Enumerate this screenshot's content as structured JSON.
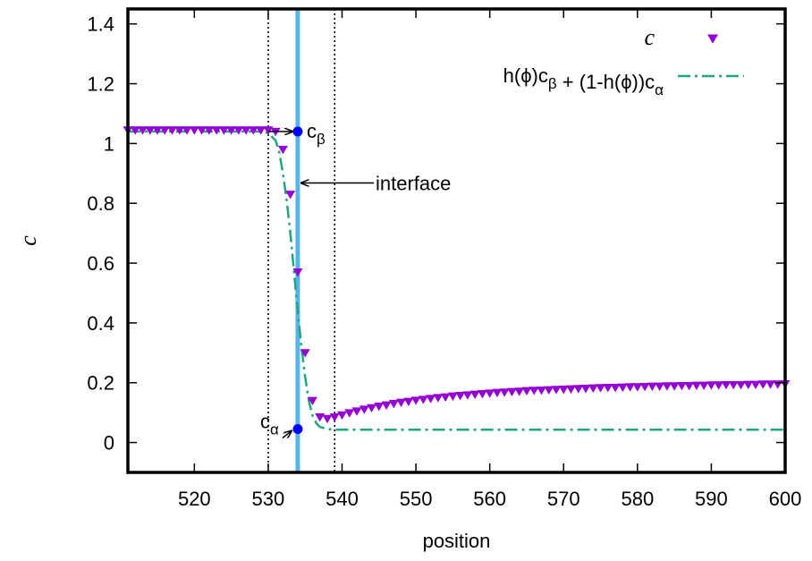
{
  "chart_data": {
    "type": "line",
    "xlabel": "position",
    "ylabel": "c",
    "xlim": [
      511,
      600
    ],
    "ylim": [
      -0.1,
      1.45
    ],
    "xticks": [
      520,
      530,
      540,
      550,
      560,
      570,
      580,
      590,
      600
    ],
    "yticks": [
      0,
      0.2,
      0.4,
      0.6,
      0.8,
      1,
      1.2,
      1.4
    ],
    "xtick_labels": [
      "520",
      "530",
      "540",
      "550",
      "560",
      "570",
      "580",
      "590",
      "600"
    ],
    "ytick_labels": [
      "0",
      "0.2",
      "0.4",
      "0.6",
      "0.8",
      "1",
      "1.2",
      "1.4"
    ],
    "grid": false,
    "legend_position": "top-right",
    "series": [
      {
        "name": "c",
        "style": "markers",
        "marker": "triangle-down",
        "color": "#9400d3",
        "x": [
          511,
          512,
          513,
          514,
          515,
          516,
          517,
          518,
          519,
          520,
          521,
          522,
          523,
          524,
          525,
          526,
          527,
          528,
          529,
          530,
          531,
          532,
          533,
          534,
          535,
          536,
          537,
          538,
          539,
          540,
          541,
          542,
          543,
          544,
          545,
          546,
          547,
          548,
          549,
          550,
          551,
          552,
          553,
          554,
          555,
          556,
          557,
          558,
          559,
          560,
          561,
          562,
          563,
          564,
          565,
          566,
          567,
          568,
          569,
          570,
          571,
          572,
          573,
          574,
          575,
          576,
          577,
          578,
          579,
          580,
          581,
          582,
          583,
          584,
          585,
          586,
          587,
          588,
          589,
          590,
          591,
          592,
          593,
          594,
          595,
          596,
          597,
          598,
          599,
          600
        ],
        "y": [
          1.045,
          1.045,
          1.045,
          1.045,
          1.045,
          1.045,
          1.045,
          1.045,
          1.045,
          1.045,
          1.045,
          1.045,
          1.045,
          1.045,
          1.045,
          1.045,
          1.045,
          1.045,
          1.045,
          1.045,
          1.04,
          0.98,
          0.83,
          0.57,
          0.3,
          0.14,
          0.085,
          0.08,
          0.085,
          0.092,
          0.099,
          0.105,
          0.111,
          0.116,
          0.121,
          0.125,
          0.13,
          0.134,
          0.137,
          0.141,
          0.144,
          0.147,
          0.15,
          0.152,
          0.155,
          0.157,
          0.159,
          0.161,
          0.163,
          0.165,
          0.167,
          0.168,
          0.17,
          0.171,
          0.173,
          0.174,
          0.175,
          0.176,
          0.177,
          0.178,
          0.179,
          0.18,
          0.181,
          0.182,
          0.183,
          0.184,
          0.184,
          0.185,
          0.186,
          0.186,
          0.187,
          0.188,
          0.188,
          0.189,
          0.189,
          0.19,
          0.19,
          0.191,
          0.191,
          0.192,
          0.192,
          0.193,
          0.193,
          0.193,
          0.194,
          0.194,
          0.195,
          0.195,
          0.195,
          0.196
        ]
      },
      {
        "name": "h(ϕ)c_β + (1-h(ϕ))c_α",
        "style": "dash-dot",
        "color": "#20a67e",
        "x": [
          511,
          529,
          530,
          531,
          531.5,
          532,
          532.5,
          533,
          533.5,
          534,
          534.5,
          535,
          535.5,
          536,
          536.5,
          537,
          538,
          539,
          540,
          550,
          560,
          570,
          580,
          590,
          600
        ],
        "y": [
          1.04,
          1.04,
          1.035,
          1.01,
          0.97,
          0.9,
          0.81,
          0.7,
          0.57,
          0.44,
          0.32,
          0.22,
          0.14,
          0.09,
          0.065,
          0.052,
          0.045,
          0.043,
          0.043,
          0.043,
          0.043,
          0.043,
          0.043,
          0.043,
          0.043
        ]
      }
    ],
    "vertical_lines": [
      {
        "x": 530,
        "style": "dotted",
        "color": "#000000"
      },
      {
        "x": 539,
        "style": "dotted",
        "color": "#000000"
      },
      {
        "x": 534,
        "style": "solid",
        "color": "#56b4e9"
      }
    ],
    "points": [
      {
        "label": "c_β",
        "x": 534,
        "y": 1.04,
        "color": "#0000ff"
      },
      {
        "label": "c_α",
        "x": 534,
        "y": 0.045,
        "color": "#0000ff"
      }
    ],
    "annotations": [
      {
        "text": "interface",
        "target_x": 534,
        "target_y": 0.85
      },
      {
        "text": "c_β",
        "target_x": 534,
        "target_y": 1.04
      },
      {
        "text": "c_α",
        "target_x": 534,
        "target_y": 0.045
      }
    ]
  }
}
